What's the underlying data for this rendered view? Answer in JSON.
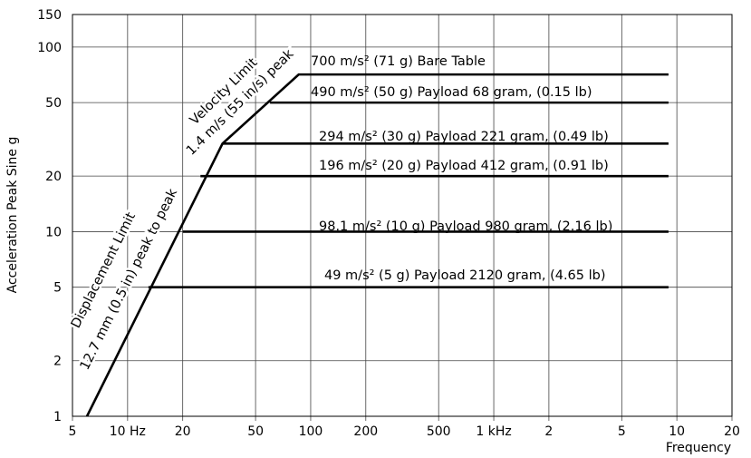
{
  "chart_data": {
    "type": "line",
    "log_x": true,
    "log_y": true,
    "grid": true,
    "x_label": "Frequency",
    "y_label": "Acceleration  Peak Sine g",
    "xlim": [
      5,
      20000
    ],
    "ylim": [
      1,
      150
    ],
    "xticks": [
      5,
      {
        "value": 10,
        "label": "10 Hz"
      },
      20,
      50,
      100,
      200,
      500,
      {
        "value": 1000,
        "label": "1 kHz"
      },
      {
        "value": 2000,
        "label": "2"
      },
      {
        "value": 5000,
        "label": "5"
      },
      {
        "value": 10000,
        "label": "10"
      },
      {
        "value": 20000,
        "label": "20"
      }
    ],
    "yticks": [
      1,
      2,
      5,
      10,
      20,
      50,
      100,
      150
    ],
    "series": [
      {
        "name": "700 m/s² (71 g) Bare Table",
        "color": "#000000",
        "x": [
          6,
          33,
          86,
          9000
        ],
        "values": [
          1,
          30,
          71,
          71
        ]
      },
      {
        "name": "490 m/s² (50 g) Payload 68 gram, (0.15 lb)",
        "color": "#000000",
        "x": [
          60,
          9000
        ],
        "values": [
          50,
          50
        ]
      },
      {
        "name": "294 m/s² (30 g) Payload 221 gram, (0.49 lb)",
        "color": "#000000",
        "x": [
          33,
          9000
        ],
        "values": [
          30,
          30
        ]
      },
      {
        "name": "196 m/s² (20 g) Payload 412 gram, (0.91 lb)",
        "color": "#000000",
        "x": [
          25,
          9000
        ],
        "values": [
          20,
          20
        ]
      },
      {
        "name": "98.1 m/s² (10 g) Payload 980 gram, (2.16 lb)",
        "color": "#000000",
        "x": [
          20,
          9000
        ],
        "values": [
          10,
          10
        ]
      },
      {
        "name": "49 m/s² (5 g) Payload 2120 gram, (4.65 lb)",
        "color": "#000000",
        "x": [
          13,
          9000
        ],
        "values": [
          5,
          5
        ]
      }
    ],
    "annotations": [
      "Displacement Limit",
      "12.7 mm (0.5 in) peak to peak",
      "Velocity Limit",
      "1.4 m/s (55 in/s) peak"
    ]
  }
}
